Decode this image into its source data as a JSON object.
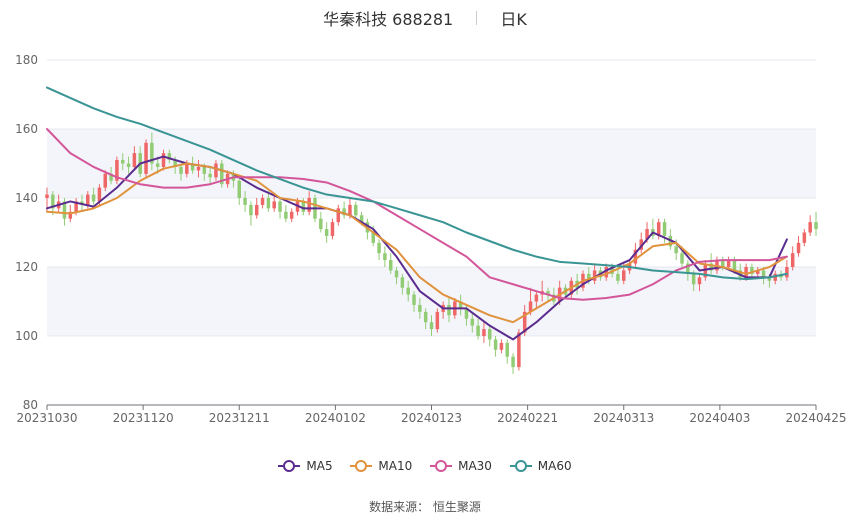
{
  "header": {
    "title": "华秦科技 688281",
    "period": "日K"
  },
  "footer": {
    "source_label": "数据来源：",
    "source_name": "恒生聚源"
  },
  "colors": {
    "up": "#ee6666",
    "down": "#91cc75",
    "MA5": "#5b2c8f",
    "MA10": "#e0923c",
    "MA30": "#d3569a",
    "MA60": "#3a9494",
    "grid": "#e5e8ef",
    "band": "#f3f5fa"
  },
  "chart_data": {
    "type": "candlestick",
    "ylim": [
      80,
      180
    ],
    "yticks": [
      80,
      100,
      120,
      140,
      160,
      180
    ],
    "xtick_labels": [
      "20231030",
      "20231120",
      "20231211",
      "20240102",
      "20240123",
      "20240221",
      "20240313",
      "20240403",
      "20240425"
    ],
    "legend": [
      "MA5",
      "MA10",
      "MA30",
      "MA60"
    ],
    "grid": true,
    "legend_position": "bottom",
    "candles": [
      [
        140,
        141,
        136,
        143
      ],
      [
        141,
        137,
        135,
        142
      ],
      [
        137,
        139,
        136,
        141
      ],
      [
        139,
        134,
        132,
        140
      ],
      [
        134,
        136,
        133,
        138
      ],
      [
        136,
        139,
        135,
        140
      ],
      [
        139,
        138,
        136,
        141
      ],
      [
        138,
        141,
        137,
        142
      ],
      [
        141,
        139,
        138,
        143
      ],
      [
        139,
        143,
        138,
        144
      ],
      [
        143,
        147,
        142,
        148
      ],
      [
        147,
        145,
        144,
        149
      ],
      [
        145,
        151,
        144,
        152
      ],
      [
        151,
        150,
        148,
        153
      ],
      [
        150,
        149,
        147,
        152
      ],
      [
        149,
        153,
        148,
        155
      ],
      [
        153,
        147,
        146,
        155
      ],
      [
        147,
        156,
        146,
        157
      ],
      [
        156,
        150,
        148,
        159
      ],
      [
        150,
        149,
        147,
        152
      ],
      [
        149,
        153,
        148,
        154
      ],
      [
        153,
        151,
        150,
        154
      ],
      [
        151,
        149,
        147,
        152
      ],
      [
        149,
        147,
        145,
        150
      ],
      [
        147,
        150,
        146,
        151
      ],
      [
        150,
        148,
        147,
        152
      ],
      [
        148,
        149,
        146,
        151
      ],
      [
        149,
        147,
        145,
        150
      ],
      [
        147,
        146,
        144,
        149
      ],
      [
        146,
        150,
        145,
        151
      ],
      [
        150,
        144,
        143,
        151
      ],
      [
        144,
        147,
        143,
        148
      ],
      [
        147,
        145,
        143,
        148
      ],
      [
        145,
        140,
        138,
        146
      ],
      [
        140,
        138,
        136,
        142
      ],
      [
        138,
        135,
        132,
        139
      ],
      [
        135,
        138,
        134,
        140
      ],
      [
        138,
        140,
        137,
        141
      ],
      [
        140,
        137,
        136,
        142
      ],
      [
        137,
        139,
        136,
        141
      ],
      [
        139,
        136,
        134,
        140
      ],
      [
        136,
        134,
        133,
        138
      ],
      [
        134,
        136,
        133,
        137
      ],
      [
        136,
        139,
        135,
        140
      ],
      [
        139,
        136,
        135,
        140
      ],
      [
        136,
        140,
        135,
        142
      ],
      [
        140,
        134,
        133,
        141
      ],
      [
        134,
        131,
        130,
        136
      ],
      [
        131,
        129,
        127,
        133
      ],
      [
        129,
        133,
        128,
        134
      ],
      [
        133,
        137,
        132,
        138
      ],
      [
        137,
        135,
        134,
        139
      ],
      [
        135,
        138,
        134,
        140
      ],
      [
        138,
        135,
        134,
        139
      ],
      [
        135,
        133,
        132,
        136
      ],
      [
        133,
        130,
        128,
        134
      ],
      [
        130,
        127,
        126,
        132
      ],
      [
        127,
        124,
        122,
        128
      ],
      [
        124,
        122,
        120,
        126
      ],
      [
        122,
        119,
        118,
        124
      ],
      [
        119,
        117,
        115,
        120
      ],
      [
        117,
        114,
        112,
        118
      ],
      [
        114,
        112,
        110,
        116
      ],
      [
        112,
        109,
        107,
        113
      ],
      [
        109,
        107,
        105,
        111
      ],
      [
        107,
        104,
        102,
        108
      ],
      [
        104,
        102,
        100,
        106
      ],
      [
        102,
        107,
        101,
        108
      ],
      [
        107,
        109,
        105,
        110
      ],
      [
        109,
        106,
        104,
        111
      ],
      [
        106,
        110,
        105,
        111
      ],
      [
        110,
        108,
        106,
        112
      ],
      [
        108,
        105,
        103,
        109
      ],
      [
        105,
        103,
        101,
        107
      ],
      [
        103,
        100,
        99,
        105
      ],
      [
        100,
        102,
        98,
        104
      ],
      [
        102,
        99,
        97,
        103
      ],
      [
        99,
        96,
        94,
        100
      ],
      [
        96,
        98,
        95,
        99
      ],
      [
        98,
        94,
        92,
        99
      ],
      [
        94,
        91,
        89,
        95
      ],
      [
        91,
        101,
        90,
        102
      ],
      [
        101,
        107,
        100,
        109
      ],
      [
        107,
        110,
        106,
        114
      ],
      [
        110,
        112,
        108,
        113
      ],
      [
        112,
        113,
        110,
        116
      ],
      [
        113,
        112,
        110,
        114
      ],
      [
        112,
        110,
        109,
        114
      ],
      [
        110,
        114,
        109,
        116
      ],
      [
        114,
        112,
        111,
        115
      ],
      [
        112,
        116,
        111,
        117
      ],
      [
        116,
        114,
        112,
        118
      ],
      [
        114,
        118,
        113,
        119
      ],
      [
        118,
        116,
        115,
        120
      ],
      [
        116,
        119,
        115,
        121
      ],
      [
        119,
        117,
        116,
        120
      ],
      [
        117,
        120,
        116,
        121
      ],
      [
        120,
        118,
        117,
        121
      ],
      [
        118,
        116,
        115,
        120
      ],
      [
        116,
        119,
        115,
        121
      ],
      [
        119,
        121,
        118,
        122
      ],
      [
        121,
        125,
        120,
        127
      ],
      [
        125,
        128,
        124,
        130
      ],
      [
        128,
        131,
        127,
        133
      ],
      [
        131,
        129,
        128,
        134
      ],
      [
        129,
        133,
        128,
        134
      ],
      [
        133,
        129,
        127,
        134
      ],
      [
        129,
        126,
        125,
        131
      ],
      [
        126,
        124,
        122,
        128
      ],
      [
        124,
        121,
        120,
        126
      ],
      [
        121,
        118,
        116,
        122
      ],
      [
        118,
        115,
        113,
        119
      ],
      [
        115,
        117,
        113,
        118
      ],
      [
        117,
        121,
        116,
        122
      ],
      [
        121,
        119,
        118,
        124
      ],
      [
        119,
        122,
        118,
        123
      ],
      [
        122,
        120,
        119,
        123
      ],
      [
        120,
        122,
        119,
        123
      ],
      [
        122,
        119,
        118,
        123
      ],
      [
        119,
        117,
        116,
        121
      ],
      [
        117,
        120,
        116,
        121
      ],
      [
        120,
        118,
        117,
        121
      ],
      [
        118,
        119,
        117,
        120
      ],
      [
        119,
        117,
        115,
        120
      ],
      [
        117,
        116,
        114,
        118
      ],
      [
        116,
        118,
        115,
        119
      ],
      [
        118,
        117,
        116,
        119
      ],
      [
        117,
        120,
        116,
        122
      ],
      [
        120,
        124,
        119,
        126
      ],
      [
        124,
        127,
        123,
        129
      ],
      [
        127,
        130,
        126,
        131
      ],
      [
        130,
        133,
        129,
        135
      ],
      [
        133,
        131,
        129,
        136
      ]
    ],
    "series": [
      {
        "name": "MA5",
        "x": [
          0,
          4,
          8,
          12,
          16,
          20,
          24,
          28,
          32,
          36,
          40,
          44,
          48,
          52,
          56,
          60,
          64,
          68,
          72,
          76,
          80,
          84,
          88,
          92,
          96,
          100,
          104,
          108,
          112,
          116,
          120,
          124,
          127
        ],
        "values": [
          137,
          139,
          137.5,
          143,
          150,
          152,
          150,
          149,
          147,
          143,
          140,
          137,
          137,
          135,
          131,
          123,
          113,
          108,
          108,
          103,
          99,
          104,
          110,
          115,
          119,
          122,
          130,
          127,
          119,
          120,
          117,
          117,
          128
        ]
      },
      {
        "name": "MA10",
        "x": [
          0,
          4,
          8,
          12,
          16,
          20,
          24,
          28,
          32,
          36,
          40,
          44,
          48,
          52,
          56,
          60,
          64,
          68,
          72,
          76,
          80,
          84,
          88,
          92,
          96,
          100,
          104,
          108,
          112,
          116,
          120,
          124,
          127
        ],
        "values": [
          136,
          135.5,
          137,
          140,
          145,
          148.5,
          150,
          149,
          147,
          145,
          140,
          139,
          137,
          135,
          130,
          125,
          117,
          112,
          109,
          106,
          104,
          108,
          112,
          116,
          118,
          121,
          126,
          127,
          121,
          120,
          118,
          120,
          123
        ]
      },
      {
        "name": "MA30",
        "x": [
          0,
          4,
          8,
          12,
          16,
          20,
          24,
          28,
          32,
          36,
          40,
          44,
          48,
          52,
          56,
          60,
          64,
          68,
          72,
          76,
          80,
          84,
          88,
          92,
          96,
          100,
          104,
          108,
          112,
          116,
          120,
          124,
          127
        ],
        "values": [
          160,
          153,
          149,
          146,
          144,
          143,
          143,
          144,
          146,
          146,
          146,
          145.5,
          144.5,
          142,
          139,
          135,
          131,
          127,
          123,
          117,
          115,
          113,
          111,
          110.5,
          111,
          112,
          115,
          119,
          121.5,
          122,
          122,
          122,
          123
        ]
      },
      {
        "name": "MA60",
        "x": [
          0,
          4,
          8,
          12,
          16,
          20,
          24,
          28,
          32,
          36,
          40,
          44,
          48,
          52,
          56,
          60,
          64,
          68,
          72,
          76,
          80,
          84,
          88,
          92,
          96,
          100,
          104,
          108,
          112,
          116,
          120,
          124,
          127
        ],
        "values": [
          172,
          169,
          166,
          163.5,
          161.5,
          159,
          156.5,
          154,
          151,
          148,
          145.5,
          143,
          141,
          140,
          139,
          137,
          135,
          133,
          130,
          127.5,
          125,
          123,
          121.5,
          121,
          120.5,
          120,
          119,
          118.5,
          118,
          117,
          116.5,
          117,
          118
        ]
      }
    ]
  }
}
